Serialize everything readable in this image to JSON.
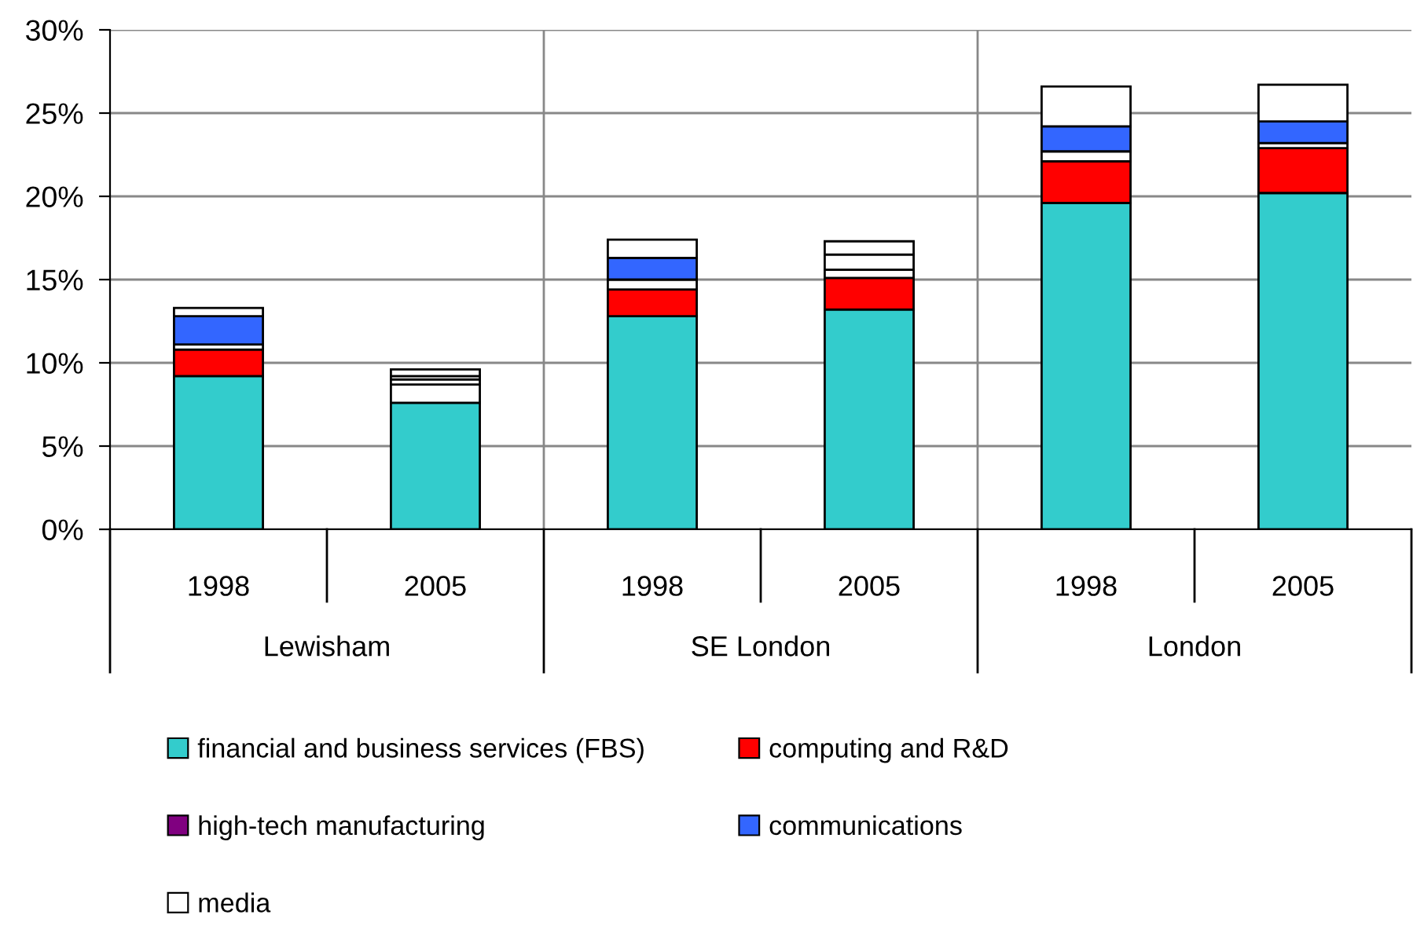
{
  "chart_data": {
    "type": "bar",
    "stacked": true,
    "categories": [
      "1998",
      "2005",
      "1998",
      "2005",
      "1998",
      "2005"
    ],
    "annotations": [
      "Lewisham",
      "SE London",
      "London"
    ],
    "series": [
      {
        "name": "financial and business services (FBS)",
        "color": "#33cccc",
        "values": [
          9.2,
          7.6,
          12.8,
          13.2,
          19.6,
          20.2
        ]
      },
      {
        "name": "computing and R&D",
        "color": "#ff0000",
        "colors": [
          "#ff0000",
          "#ffffff",
          "#ff0000",
          "#ff0000",
          "#ff0000",
          "#ff0000"
        ],
        "values": [
          1.6,
          1.1,
          1.6,
          1.9,
          2.5,
          2.7
        ]
      },
      {
        "name": "high-tech manufacturing",
        "color": "#800080",
        "colors": [
          "#ffffff",
          "#ffffff",
          "#ffffff",
          "#ffffff",
          "#ffffff",
          "#ffffff"
        ],
        "values": [
          0.3,
          0.3,
          0.6,
          0.5,
          0.6,
          0.3
        ]
      },
      {
        "name": "communications",
        "color": "#3366ff",
        "colors": [
          "#3366ff",
          "#ffffff",
          "#3366ff",
          "#ffffff",
          "#3366ff",
          "#3366ff"
        ],
        "values": [
          1.7,
          0.2,
          1.3,
          0.9,
          1.5,
          1.3
        ]
      },
      {
        "name": "media",
        "color": "#ffffff",
        "values": [
          0.5,
          0.4,
          1.1,
          0.8,
          2.4,
          2.2
        ]
      }
    ],
    "ylim": [
      0,
      30
    ],
    "yticks": [
      {
        "value": 0,
        "label": "0%"
      },
      {
        "value": 5,
        "label": "5%"
      },
      {
        "value": 10,
        "label": "10%"
      },
      {
        "value": 15,
        "label": "15%"
      },
      {
        "value": 20,
        "label": "20%"
      },
      {
        "value": 25,
        "label": "25%"
      },
      {
        "value": 30,
        "label": "30%"
      }
    ],
    "grid": "y",
    "legend": "bottom"
  }
}
